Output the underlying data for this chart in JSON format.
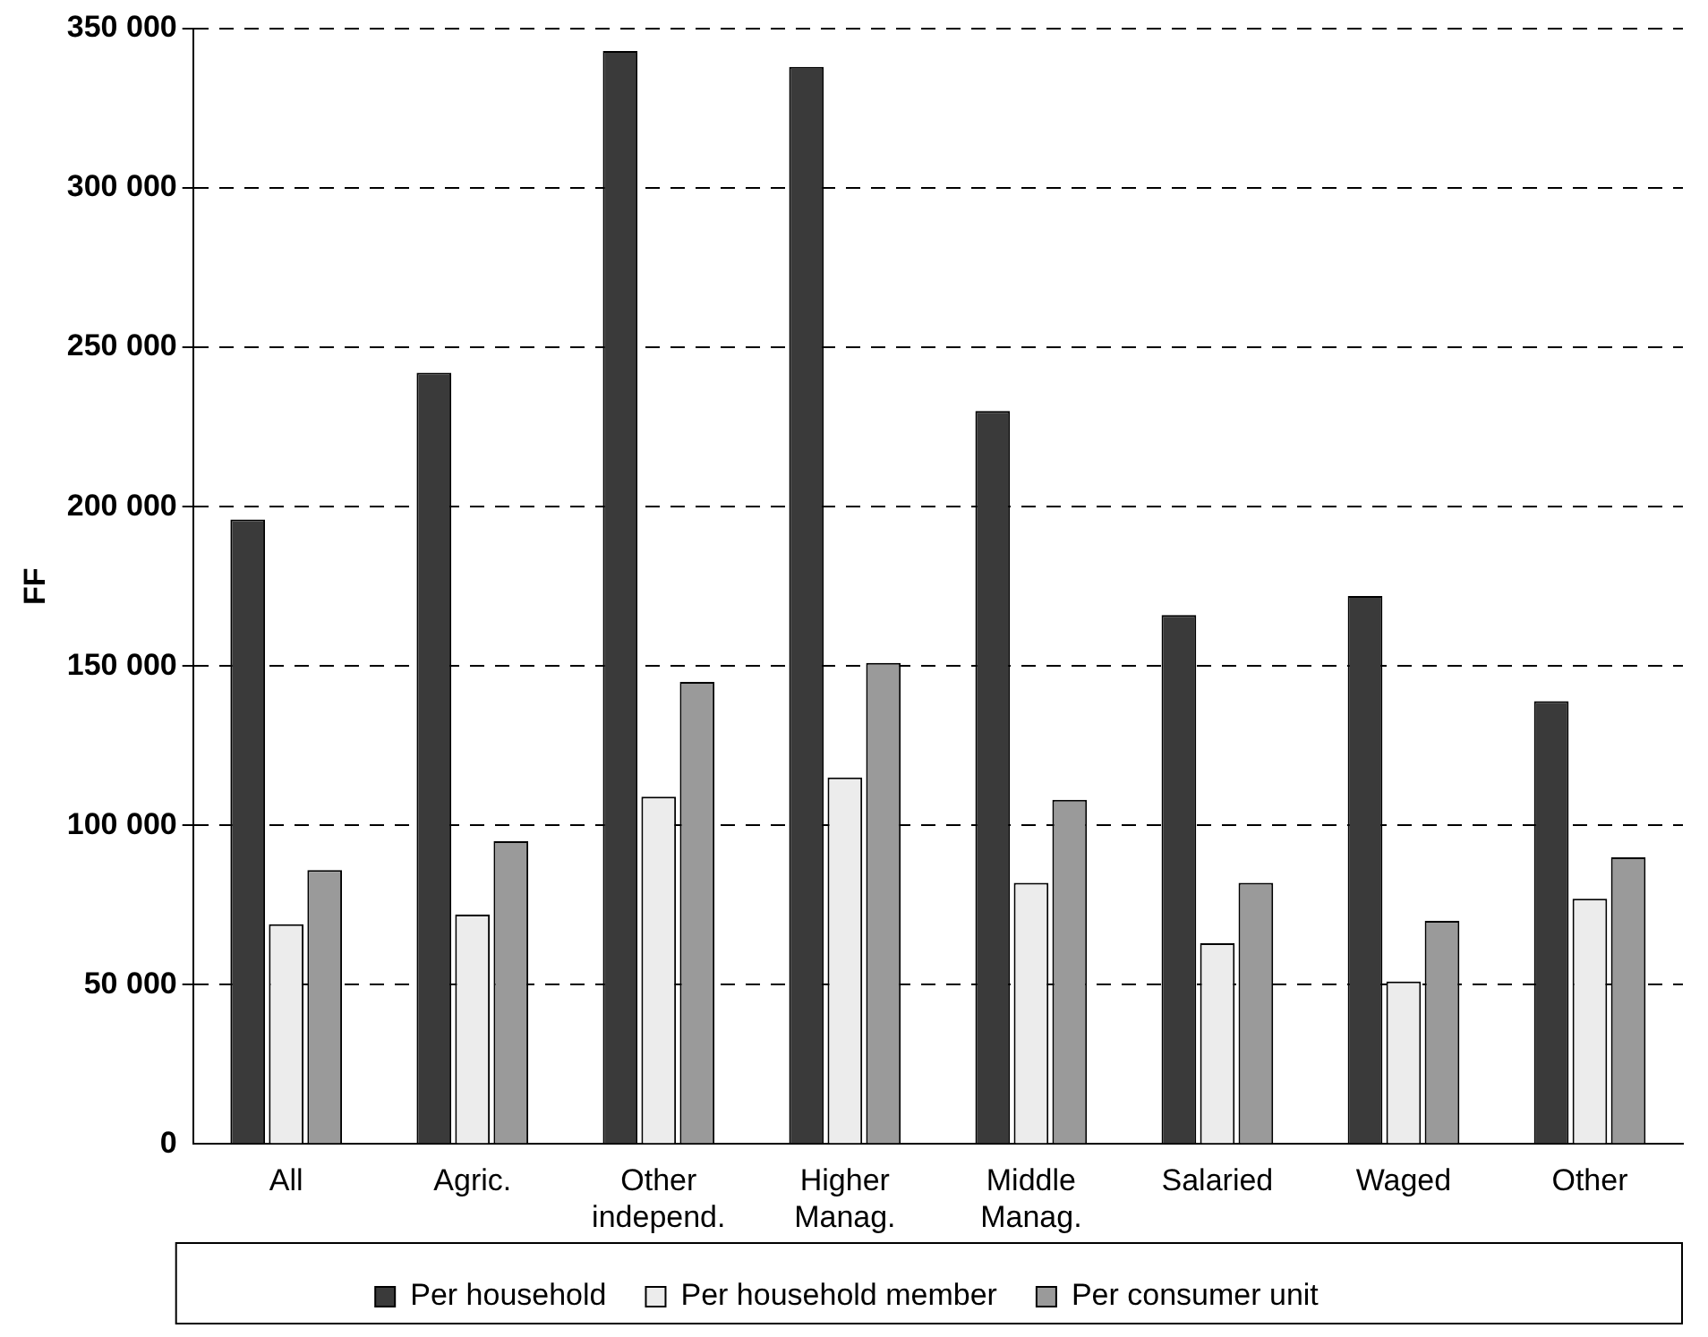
{
  "chart_data": {
    "type": "bar",
    "ylabel": "FF",
    "categories": [
      "All",
      "Agric.",
      "Other independ.",
      "Higher Manag.",
      "Middle Manag.",
      "Salaried",
      "Waged",
      "Other"
    ],
    "series": [
      {
        "name": "Per household",
        "color": "#3a3a3a",
        "values": [
          196000,
          242000,
          343000,
          338000,
          230000,
          166000,
          172000,
          139000
        ]
      },
      {
        "name": "Per household member",
        "color": "#ececec",
        "values": [
          69000,
          72000,
          109000,
          115000,
          82000,
          63000,
          51000,
          77000
        ]
      },
      {
        "name": "Per consumer unit",
        "color": "#9a9a9a",
        "values": [
          86000,
          95000,
          145000,
          151000,
          108000,
          82000,
          70000,
          90000
        ]
      }
    ],
    "ylim": [
      0,
      350000
    ],
    "yticks": [
      {
        "value": 0,
        "label": "0"
      },
      {
        "value": 50000,
        "label": "50 000"
      },
      {
        "value": 100000,
        "label": "100 000"
      },
      {
        "value": 150000,
        "label": "150 000"
      },
      {
        "value": 200000,
        "label": "200 000"
      },
      {
        "value": 250000,
        "label": "250 000"
      },
      {
        "value": 300000,
        "label": "300 000"
      },
      {
        "value": 350000,
        "label": "350 000"
      }
    ],
    "grid": "y",
    "legend": "bottom"
  }
}
